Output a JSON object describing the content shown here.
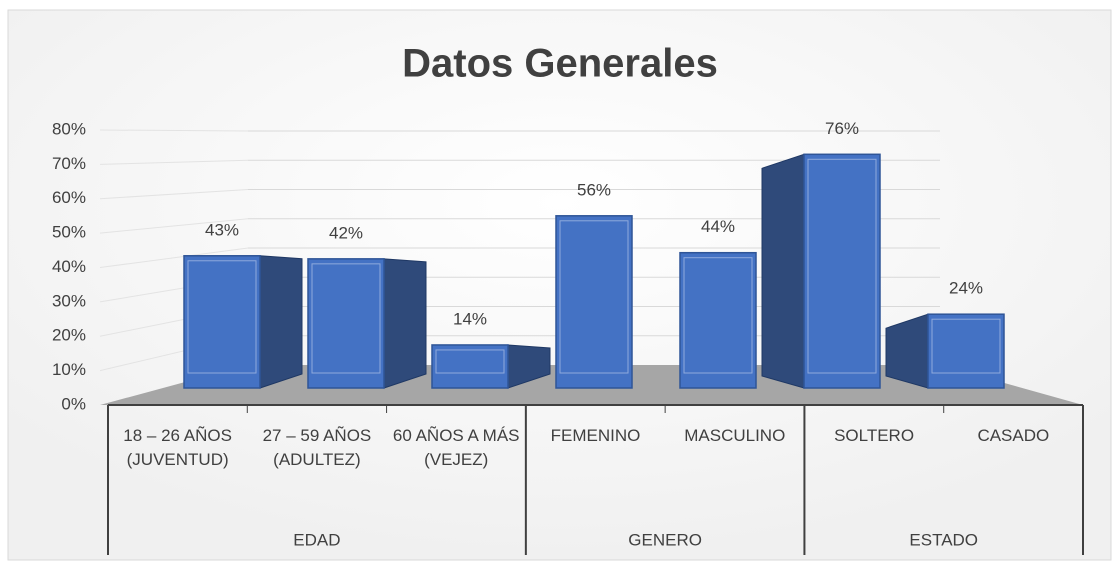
{
  "chart_data": {
    "type": "bar3d",
    "title": "Datos Generales",
    "groups": [
      {
        "name": "EDAD",
        "categories": [
          "18 – 26 AÑOS (JUVENTUD)",
          "27 – 59 AÑOS (ADULTEZ)",
          "60 AÑOS A MÁS (VEJEZ)"
        ]
      },
      {
        "name": "GENERO",
        "categories": [
          "FEMENINO",
          "MASCULINO"
        ]
      },
      {
        "name": "ESTADO",
        "categories": [
          "SOLTERO",
          "CASADO"
        ]
      }
    ],
    "values": [
      43,
      42,
      14,
      56,
      44,
      76,
      24
    ],
    "value_labels": [
      "43%",
      "42%",
      "14%",
      "56%",
      "44%",
      "76%",
      "24%"
    ],
    "color": "#4472c4",
    "ylim": [
      0,
      80
    ],
    "yticks": [
      {
        "value": 0,
        "label": "0%"
      },
      {
        "value": 10,
        "label": "10%"
      },
      {
        "value": 20,
        "label": "20%"
      },
      {
        "value": 30,
        "label": "30%"
      },
      {
        "value": 40,
        "label": "40%"
      },
      {
        "value": 50,
        "label": "50%"
      },
      {
        "value": 60,
        "label": "60%"
      },
      {
        "value": 70,
        "label": "70%"
      },
      {
        "value": 80,
        "label": "80%"
      }
    ],
    "grid": true
  }
}
